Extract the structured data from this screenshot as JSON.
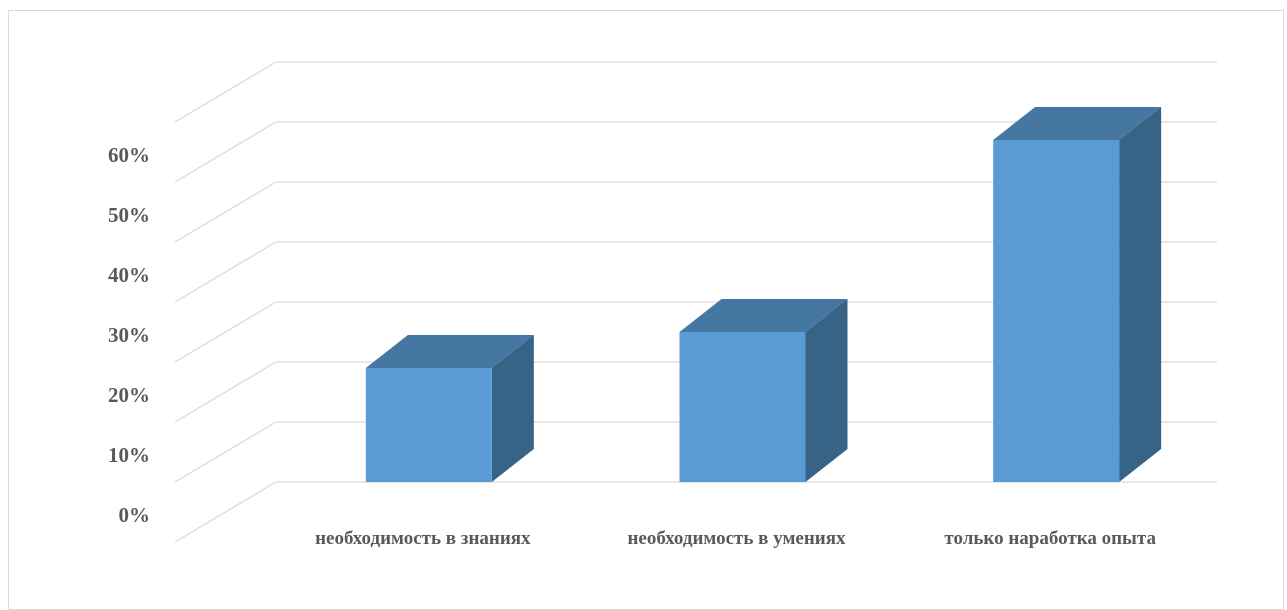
{
  "chart_data": {
    "type": "bar",
    "categories": [
      "необходимость в знаниях",
      "необходимость в умениях",
      "только наработка опыта"
    ],
    "values": [
      0.19,
      0.25,
      0.57
    ],
    "ylim": [
      0,
      0.7
    ],
    "yticks": [
      "0%",
      "10%",
      "20%",
      "30%",
      "40%",
      "50%",
      "60%"
    ],
    "grid": true,
    "three_d": true,
    "colors": {
      "front": "#5b9bd5",
      "top": "#4677a3",
      "side": "#376387",
      "grid": "#d9d9d9",
      "text": "#595959"
    }
  }
}
